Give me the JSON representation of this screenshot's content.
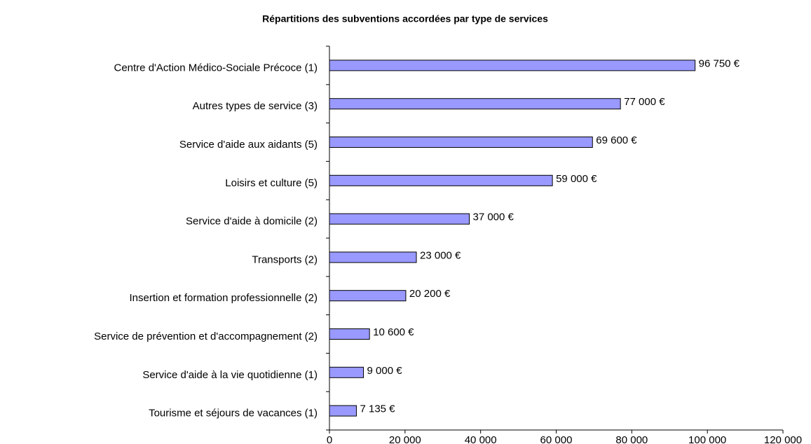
{
  "chart_data": {
    "type": "bar",
    "orientation": "horizontal",
    "title": "Répartitions des subventions accordées par type de services",
    "categories": [
      "Centre d'Action Médico-Sociale Précoce (1)",
      "Autres types de service (3)",
      "Service d'aide aux aidants (5)",
      "Loisirs et culture (5)",
      "Service d'aide à domicile (2)",
      "Transports (2)",
      "Insertion et formation professionnelle (2)",
      "Service de prévention et d'accompagnement (2)",
      "Service d'aide à la vie quotidienne (1)",
      "Tourisme et séjours de vacances (1)"
    ],
    "values": [
      96750,
      77000,
      69600,
      59000,
      37000,
      23000,
      20200,
      10600,
      9000,
      7135
    ],
    "value_labels": [
      "96 750 €",
      "77 000 €",
      "69 600 €",
      "59 000 €",
      "37 000 €",
      "23 000 €",
      "20 200 €",
      "10 600 €",
      "9 000 €",
      "7 135 €"
    ],
    "color": "#9999ff",
    "xlim": [
      0,
      120000
    ],
    "xticks": [
      0,
      {
        "value": 20000,
        "label": "20 000"
      },
      {
        "value": 40000,
        "label": "40 000"
      },
      {
        "value": 60000,
        "label": "60 000"
      },
      {
        "value": 80000,
        "label": "80 000"
      },
      {
        "value": 100000,
        "label": "100 000"
      },
      {
        "value": 120000,
        "label": "120 000"
      }
    ],
    "grid": false
  }
}
